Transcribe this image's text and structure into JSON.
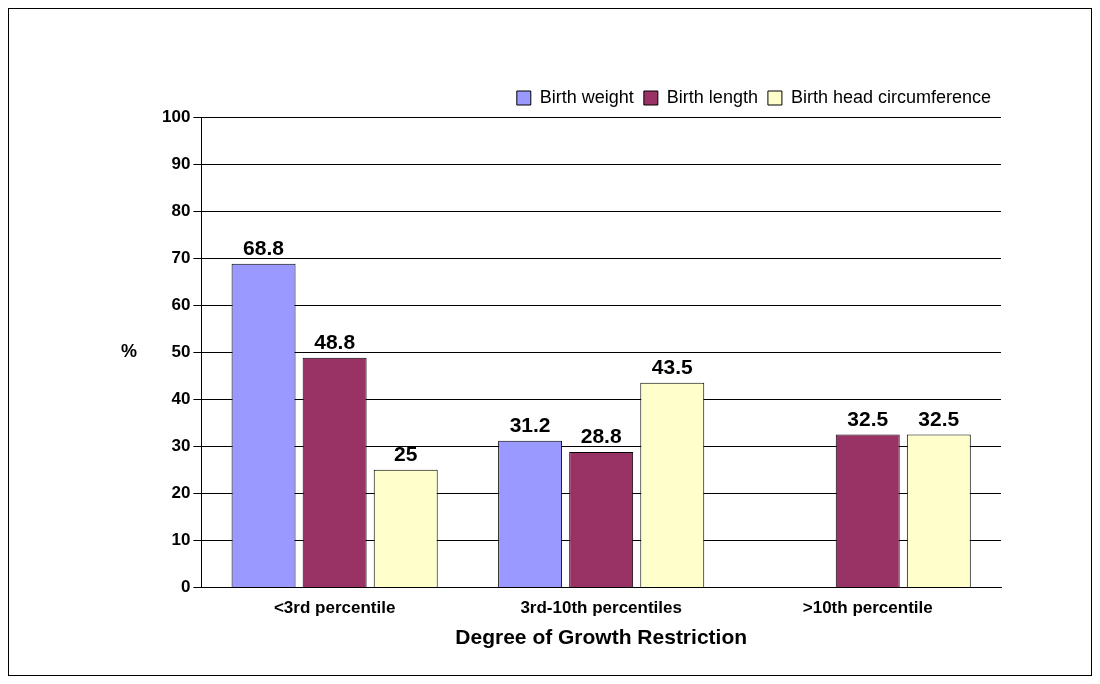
{
  "chart_data": {
    "type": "bar",
    "xlabel": "Degree of Growth Restriction",
    "ylabel": "%",
    "categories": [
      "<3rd percentile",
      "3rd-10th percentiles",
      ">10th percentile"
    ],
    "series": [
      {
        "name": "Birth weight",
        "color": "#9999ff",
        "values": [
          68.8,
          31.2,
          null
        ]
      },
      {
        "name": "Birth length",
        "color": "#993366",
        "values": [
          48.8,
          28.8,
          32.5
        ]
      },
      {
        "name": "Birth head circumference",
        "color": "#ffffcc",
        "values": [
          25,
          43.5,
          32.5
        ]
      }
    ],
    "ylim": [
      0,
      100
    ],
    "yticks": [
      0,
      10,
      20,
      30,
      40,
      50,
      60,
      70,
      80,
      90,
      100
    ],
    "grid": "y",
    "legend": "top right",
    "data_labels": true
  }
}
